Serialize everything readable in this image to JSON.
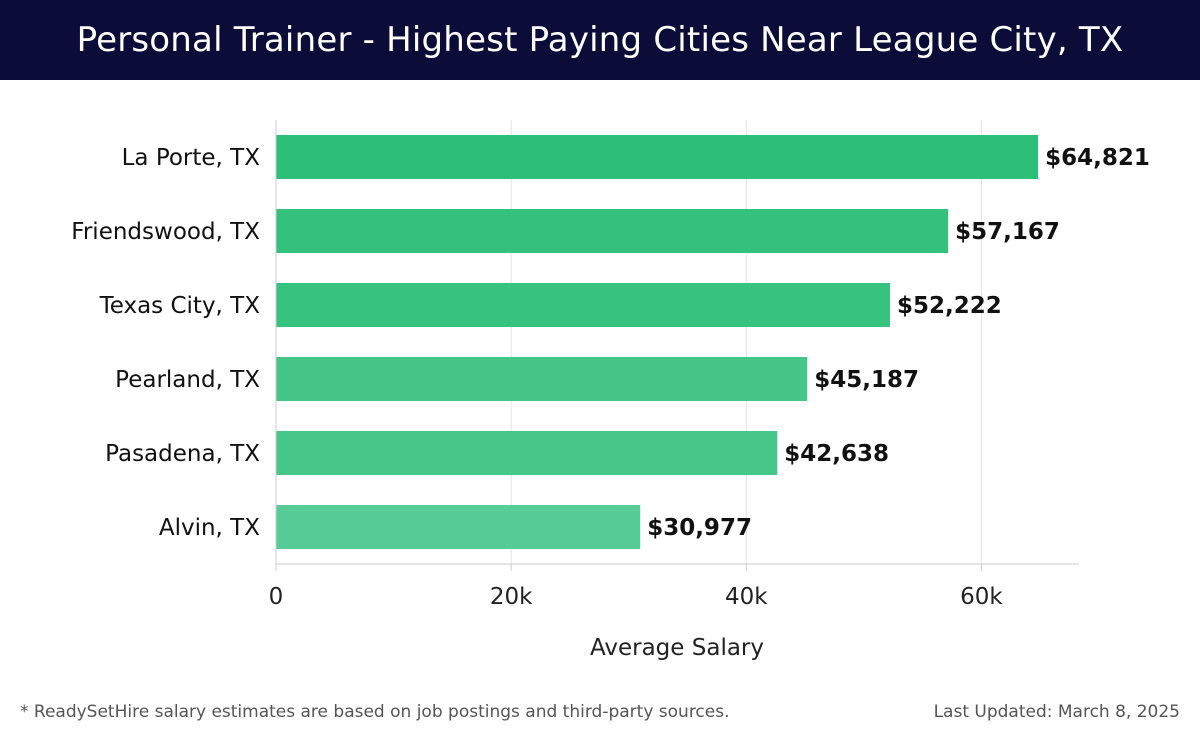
{
  "header": {
    "title": "Personal Trainer - Highest Paying Cities Near League City, TX"
  },
  "footer": {
    "note": "* ReadySetHire salary estimates are based on job postings and third-party sources.",
    "last_updated": "Last Updated: March 8, 2025"
  },
  "chart_data": {
    "type": "bar",
    "orientation": "horizontal",
    "title": "Personal Trainer - Highest Paying Cities Near League City, TX",
    "xlabel": "Average Salary",
    "ylabel": "",
    "categories": [
      "La Porte, TX",
      "Friendswood, TX",
      "Texas City, TX",
      "Pearland, TX",
      "Pasadena, TX",
      "Alvin, TX"
    ],
    "values": [
      64821,
      57167,
      52222,
      45187,
      42638,
      30977
    ],
    "value_labels": [
      "$64,821",
      "$57,167",
      "$52,222",
      "$45,187",
      "$42,638",
      "$30,977"
    ],
    "xlim": [
      0,
      68300
    ],
    "xticks": [
      0,
      20000,
      40000,
      60000
    ],
    "xtick_labels": [
      "0",
      "20k",
      "40k",
      "60k"
    ],
    "grid": true,
    "bar_colors": [
      "#2dbe78",
      "#33c17c",
      "#36c27f",
      "#45c588",
      "#47c68a",
      "#57cc96"
    ]
  }
}
